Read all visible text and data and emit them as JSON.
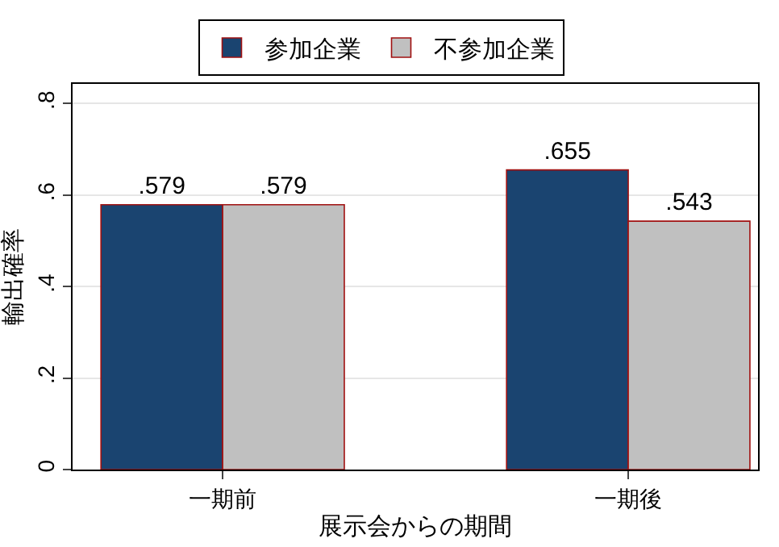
{
  "chart_data": {
    "type": "bar",
    "xlabel": "展示会からの期間",
    "ylabel": "輸出確率",
    "categories": [
      "一期前",
      "一期後"
    ],
    "series": [
      {
        "name": "参加企業",
        "color": "#1a4470",
        "values": [
          0.579,
          0.655
        ],
        "value_labels": [
          ".579",
          ".655"
        ]
      },
      {
        "name": "不参加企業",
        "color": "#c0c0c0",
        "values": [
          0.579,
          0.543
        ],
        "value_labels": [
          ".579",
          ".543"
        ]
      }
    ],
    "ylim": [
      0,
      0.843
    ],
    "yticks": [
      0,
      {
        "value": 0.2,
        "label": ".2"
      },
      {
        "value": 0.4,
        "label": ".4"
      },
      {
        "value": 0.6,
        "label": ".6"
      },
      {
        "value": 0.8,
        "label": ".8"
      }
    ],
    "grid": "y",
    "legend": "top"
  }
}
